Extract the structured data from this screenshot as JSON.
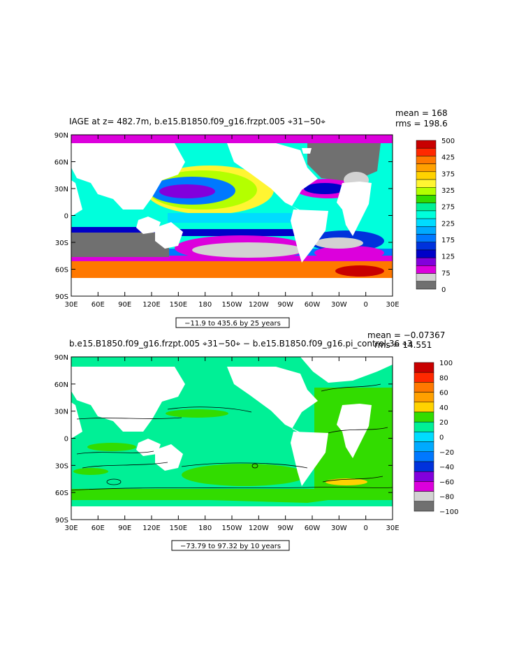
{
  "chart_data": [
    {
      "type": "heatmap",
      "title": "IAGE at z= 482.7m, b.e15.B1850.f09_g16.frzpt.005 ⌖31−50⌖",
      "stats": {
        "mean": "mean = 168",
        "rms": "rms = 198.6"
      },
      "x_ticks": [
        "30E",
        "60E",
        "90E",
        "120E",
        "150E",
        "180",
        "150W",
        "120W",
        "90W",
        "60W",
        "30W",
        "0",
        "30E"
      ],
      "y_ticks": [
        "90N",
        "60N",
        "30N",
        "0",
        "30S",
        "60S",
        "90S"
      ],
      "xlim": [
        30,
        390
      ],
      "ylim": [
        -90,
        90
      ],
      "colorbar": {
        "labels": [
          "500",
          "425",
          "375",
          "325",
          "275",
          "225",
          "175",
          "125",
          "75",
          "0"
        ],
        "colors": [
          "#c80000",
          "#ff2800",
          "#ff7800",
          "#ffa000",
          "#ffd200",
          "#fff532",
          "#b4ff00",
          "#32dc00",
          "#00f096",
          "#00ffdc",
          "#00dcff",
          "#00aaff",
          "#0078ff",
          "#0032dc",
          "#0000c8",
          "#8200dc",
          "#dc00dc",
          "#d2d2d2",
          "#707070"
        ]
      },
      "range_label": "−11.9 to 435.6 by 25 years"
    },
    {
      "type": "heatmap",
      "title": "b.e15.B1850.f09_g16.frzpt.005 ⌖31−50⌖ − b.e15.B1850.f09_g16.pi_control.36 ⌖3",
      "stats": {
        "mean": "mean = −0.07367",
        "rms": "rms = 14.551"
      },
      "x_ticks": [
        "30E",
        "60E",
        "90E",
        "120E",
        "150E",
        "180",
        "150W",
        "120W",
        "90W",
        "60W",
        "30W",
        "0",
        "30E"
      ],
      "y_ticks": [
        "90N",
        "60N",
        "30N",
        "0",
        "30S",
        "60S",
        "90S"
      ],
      "xlim": [
        30,
        390
      ],
      "ylim": [
        -90,
        90
      ],
      "colorbar": {
        "labels": [
          "100",
          "80",
          "60",
          "40",
          "20",
          "0",
          "−20",
          "−40",
          "−60",
          "−80",
          "−100"
        ],
        "colors": [
          "#c80000",
          "#ff2800",
          "#ff7800",
          "#ffa000",
          "#ffd200",
          "#32dc00",
          "#00f096",
          "#00dcff",
          "#00aaff",
          "#0078ff",
          "#0032dc",
          "#8200dc",
          "#dc00dc",
          "#d2d2d2",
          "#707070"
        ]
      },
      "range_label": "−73.79 to 97.32 by 10 years"
    }
  ]
}
